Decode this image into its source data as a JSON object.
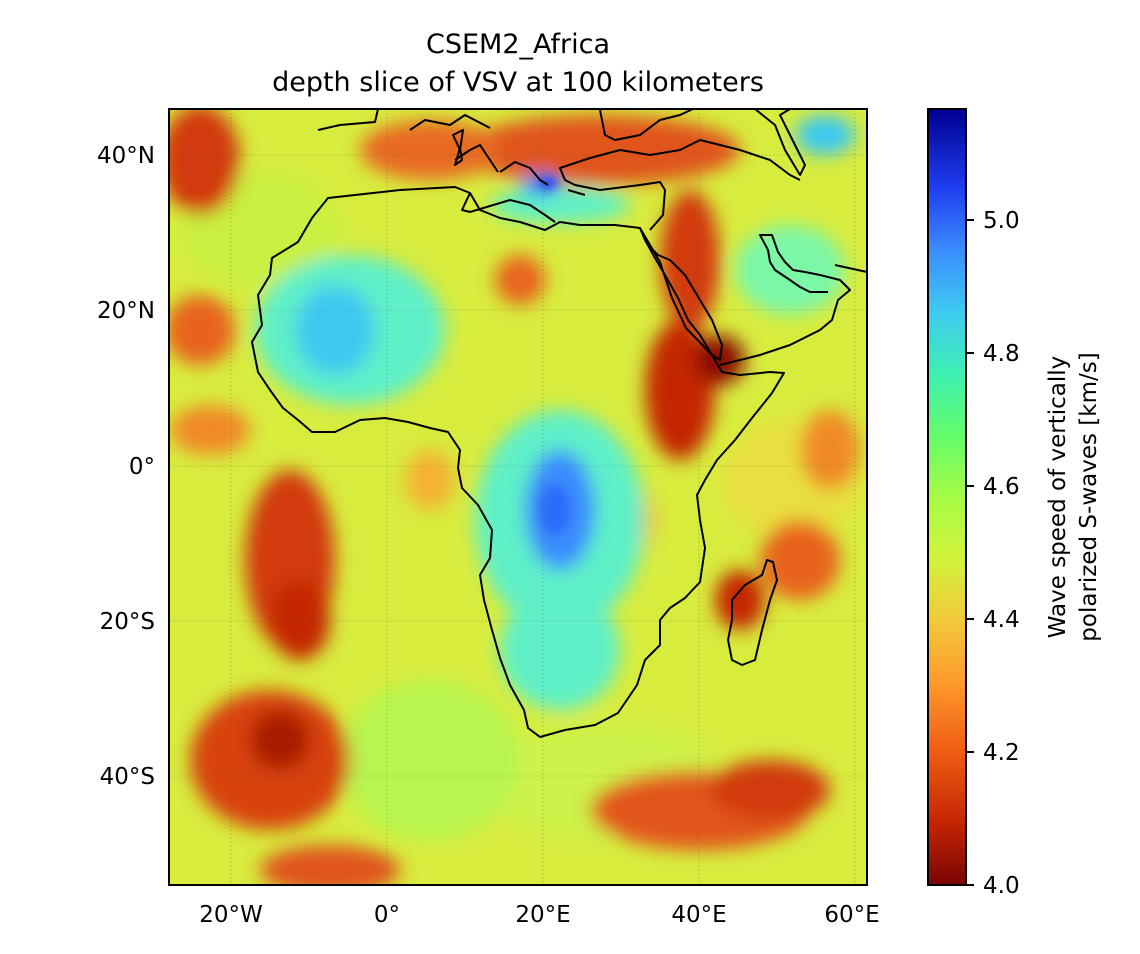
{
  "title_line1": "CSEM2_Africa",
  "title_line2": "depth slice of VSV at 100 kilometers",
  "map": {
    "lon_range": [
      -28,
      62
    ],
    "lat_range": [
      -54,
      46
    ],
    "x_ticks": [
      {
        "value": -20,
        "label": "20°W"
      },
      {
        "value": 0,
        "label": "0°"
      },
      {
        "value": 20,
        "label": "20°E"
      },
      {
        "value": 40,
        "label": "40°E"
      },
      {
        "value": 60,
        "label": "60°E"
      }
    ],
    "y_ticks": [
      {
        "value": 40,
        "label": "40°N"
      },
      {
        "value": 20,
        "label": "20°N"
      },
      {
        "value": 0,
        "label": "0°"
      },
      {
        "value": -20,
        "label": "20°S"
      },
      {
        "value": -40,
        "label": "40°S"
      }
    ],
    "gridlines": true,
    "coastlines": true
  },
  "colorbar": {
    "label_line1": "Wave speed of vertically",
    "label_line2": "polarized S-waves [km/s]",
    "min": 4.0,
    "max": 5.17,
    "colormap": "jet (reversed: red = slow, blue = fast)",
    "ticks": [
      {
        "value": 4.0,
        "label": "4.0"
      },
      {
        "value": 4.2,
        "label": "4.2"
      },
      {
        "value": 4.4,
        "label": "4.4"
      },
      {
        "value": 4.6,
        "label": "4.6"
      },
      {
        "value": 4.8,
        "label": "4.8"
      },
      {
        "value": 5.0,
        "label": "5.0"
      }
    ]
  },
  "colors": {
    "slow": "#7a0403",
    "mid": "#f2f23a",
    "fast": "#00008f"
  }
}
